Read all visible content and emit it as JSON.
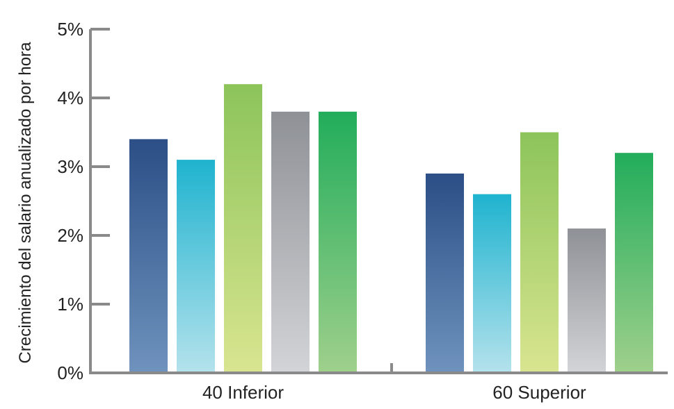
{
  "chart_data": {
    "type": "bar",
    "categories": [
      "40 Inferior",
      "60 Superior"
    ],
    "series": [
      {
        "values": [
          3.4,
          2.9
        ],
        "color_top": "#2b4f86",
        "color_bottom": "#6f93bd"
      },
      {
        "values": [
          3.1,
          2.6
        ],
        "color_top": "#1fb3cf",
        "color_bottom": "#b4e2ec"
      },
      {
        "values": [
          4.2,
          3.5
        ],
        "color_top": "#8cc45a",
        "color_bottom": "#d9e590"
      },
      {
        "values": [
          3.8,
          2.1
        ],
        "color_top": "#8e9196",
        "color_bottom": "#d3d4d8"
      },
      {
        "values": [
          3.8,
          3.2
        ],
        "color_top": "#22ad5b",
        "color_bottom": "#9fd08c"
      }
    ],
    "ylim": [
      0,
      5
    ],
    "yticks": [
      0,
      1,
      2,
      3,
      4,
      5
    ],
    "ytick_labels": [
      "0%",
      "1%",
      "2%",
      "3%",
      "4%",
      "5%"
    ],
    "ylabel": "Crecimiento del salario anualizado por hora",
    "xlabel": "",
    "axis_color": "#8a8a8a",
    "grid": false,
    "legend": "none"
  }
}
